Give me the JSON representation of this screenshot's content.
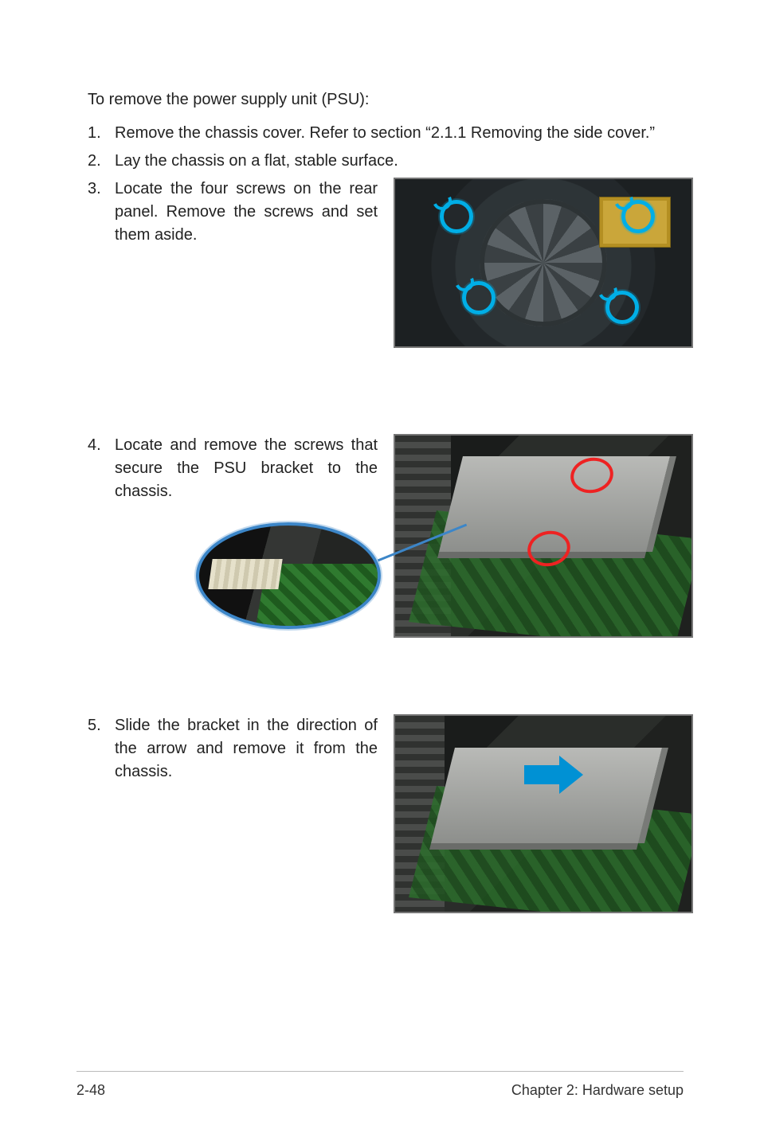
{
  "intro": "To remove the power supply unit (PSU):",
  "steps": {
    "s1": {
      "num": "1.",
      "text": "Remove the chassis cover. Refer to section “2.1.1 Removing the side cover.”"
    },
    "s2": {
      "num": "2.",
      "text": "Lay the chassis on a flat, stable surface."
    },
    "s3": {
      "num": "3.",
      "text": "Locate the four screws on the rear panel. Remove the screws and set them aside."
    },
    "s4": {
      "num": "4.",
      "text": "Locate and remove the screws that secure the PSU  bracket to the chassis."
    },
    "s5": {
      "num": "5.",
      "text": "Slide the bracket in the direction of the arrow and remove it from the chassis."
    }
  },
  "figures": {
    "psu_rear": {
      "screw_ring_color": "#00aee6",
      "screws": [
        {
          "t": "26px",
          "l": "56px"
        },
        {
          "t": "26px",
          "l": "284px"
        },
        {
          "t": "128px",
          "l": "84px"
        },
        {
          "t": "140px",
          "l": "264px"
        }
      ]
    },
    "inside1": {
      "ring_color": "#e22222",
      "rings": [
        {
          "t": "28px",
          "l": "220px"
        },
        {
          "t": "120px",
          "l": "166px"
        }
      ],
      "callout_border": "#3c86c8"
    },
    "inside2": {
      "arrow_color": "#0091d4"
    }
  },
  "footer": {
    "left": "2-48",
    "right": "Chapter 2:  Hardware setup"
  }
}
